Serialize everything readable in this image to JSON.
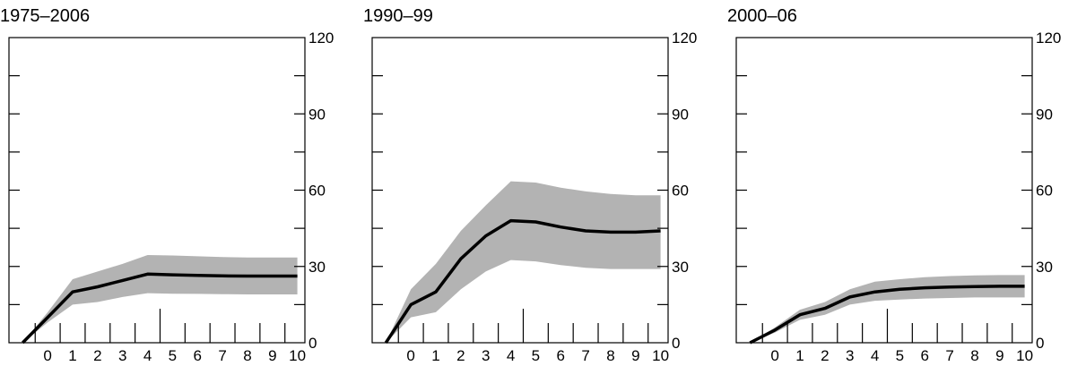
{
  "chart_data": [
    {
      "type": "line",
      "title": "1975–2006",
      "x": [
        -1,
        0,
        1,
        2,
        3,
        4,
        5,
        6,
        7,
        8,
        9,
        10
      ],
      "x_tick_labels": [
        "0",
        "1",
        "2",
        "3",
        "4",
        "5",
        "6",
        "7",
        "8",
        "9",
        "10"
      ],
      "ylim": [
        0,
        120
      ],
      "y_tick_labels": [
        "0",
        "30",
        "60",
        "90",
        "120"
      ],
      "grid": false,
      "series": [
        {
          "values": [
            0,
            10,
            20,
            22,
            24.5,
            27,
            26.7,
            26.5,
            26.3,
            26.2,
            26.2,
            26.2
          ]
        },
        {
          "values": [
            0,
            12,
            25,
            28,
            31,
            34.5,
            34.3,
            34,
            33.7,
            33.5,
            33.5,
            33.5
          ]
        },
        {
          "values": [
            0,
            8,
            15,
            16,
            18,
            19.5,
            19.3,
            19.2,
            19.1,
            19,
            19,
            19
          ]
        }
      ]
    },
    {
      "type": "line",
      "title": "1990–99",
      "x": [
        -1,
        0,
        1,
        2,
        3,
        4,
        5,
        6,
        7,
        8,
        9,
        10
      ],
      "x_tick_labels": [
        "0",
        "1",
        "2",
        "3",
        "4",
        "5",
        "6",
        "7",
        "8",
        "9",
        "10"
      ],
      "ylim": [
        0,
        120
      ],
      "y_tick_labels": [
        "0",
        "30",
        "60",
        "90",
        "120"
      ],
      "grid": false,
      "series": [
        {
          "values": [
            0,
            15,
            20,
            33,
            42,
            48,
            47.5,
            45.5,
            44,
            43.5,
            43.5,
            44
          ]
        },
        {
          "values": [
            0,
            21,
            31,
            44,
            54,
            63.5,
            63,
            61,
            59.5,
            58.5,
            58,
            58
          ]
        },
        {
          "values": [
            0,
            10,
            12,
            21,
            28,
            32.5,
            32,
            30.5,
            29.5,
            29,
            29,
            29
          ]
        }
      ]
    },
    {
      "type": "line",
      "title": "2000–06",
      "x": [
        -1,
        0,
        1,
        2,
        3,
        4,
        5,
        6,
        7,
        8,
        9,
        10
      ],
      "x_tick_labels": [
        "0",
        "1",
        "2",
        "3",
        "4",
        "5",
        "6",
        "7",
        "8",
        "9",
        "10"
      ],
      "ylim": [
        0,
        120
      ],
      "y_tick_labels": [
        "0",
        "30",
        "60",
        "90",
        "120"
      ],
      "grid": false,
      "series": [
        {
          "values": [
            0,
            5,
            11,
            13.5,
            18,
            20,
            21,
            21.6,
            21.9,
            22.1,
            22.2,
            22.2
          ]
        },
        {
          "values": [
            0,
            6,
            13,
            16,
            21,
            24,
            25,
            25.8,
            26.2,
            26.5,
            26.6,
            26.6
          ]
        },
        {
          "values": [
            0,
            4,
            9,
            11,
            15,
            16.5,
            17,
            17.4,
            17.6,
            17.8,
            17.8,
            17.8
          ]
        }
      ]
    }
  ]
}
